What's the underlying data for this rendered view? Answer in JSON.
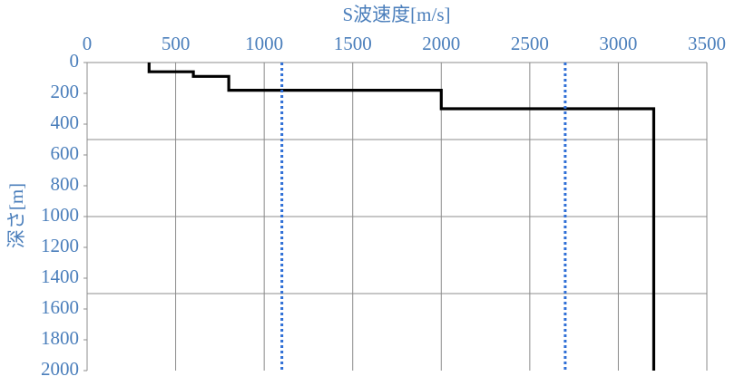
{
  "chart_data": {
    "type": "line",
    "title": "S波速度[m/s]",
    "y_label": "深さ[m]",
    "xlim": [
      0,
      3500
    ],
    "xticks": [
      0,
      500,
      1000,
      1500,
      2000,
      2500,
      3000,
      3500
    ],
    "ylim": [
      0,
      2000
    ],
    "yticks": [
      0,
      200,
      400,
      600,
      800,
      1000,
      1200,
      1400,
      1600,
      1800,
      2000
    ],
    "ygrid": [
      500,
      1000,
      1500
    ],
    "y_inverted": true,
    "x_axis_position": "top",
    "grid": true,
    "series": [
      {
        "color": "#000000",
        "dash": false,
        "x": [
          350,
          350,
          600,
          600,
          800,
          800,
          2000,
          2000,
          3200,
          3200
        ],
        "y": [
          0,
          60,
          60,
          90,
          90,
          180,
          180,
          300,
          300,
          2000
        ]
      },
      {
        "color": "#2f6fd6",
        "dash": true,
        "x": [
          1100,
          1100
        ],
        "y": [
          0,
          2000
        ]
      },
      {
        "color": "#2f6fd6",
        "dash": true,
        "x": [
          2700,
          2700
        ],
        "y": [
          0,
          2000
        ]
      }
    ]
  }
}
